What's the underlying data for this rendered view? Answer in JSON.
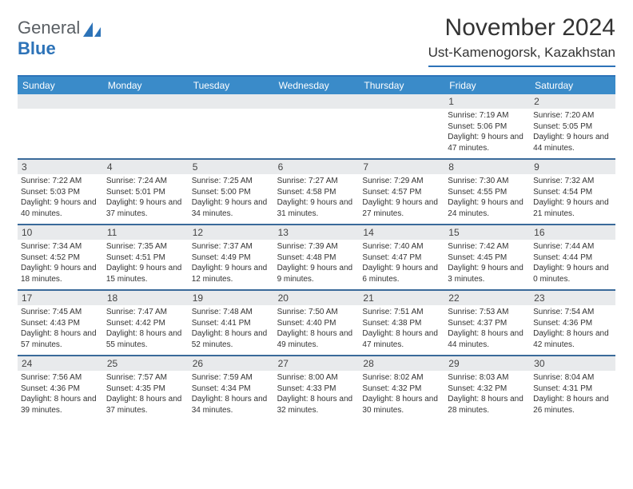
{
  "logo": {
    "word1": "General",
    "word2": "Blue"
  },
  "title": "November 2024",
  "location": "Ust-Kamenogorsk, Kazakhstan",
  "colors": {
    "header_bg": "#3a8bc9",
    "accent": "#2d73b8",
    "week_divider": "#3a6a9a",
    "daynum_bg": "#e8eaec",
    "text": "#333333",
    "logo_gray": "#5a5f64"
  },
  "weekdays": [
    "Sunday",
    "Monday",
    "Tuesday",
    "Wednesday",
    "Thursday",
    "Friday",
    "Saturday"
  ],
  "weeks": [
    [
      {
        "n": "",
        "sr": "",
        "ss": "",
        "dl": ""
      },
      {
        "n": "",
        "sr": "",
        "ss": "",
        "dl": ""
      },
      {
        "n": "",
        "sr": "",
        "ss": "",
        "dl": ""
      },
      {
        "n": "",
        "sr": "",
        "ss": "",
        "dl": ""
      },
      {
        "n": "",
        "sr": "",
        "ss": "",
        "dl": ""
      },
      {
        "n": "1",
        "sr": "Sunrise: 7:19 AM",
        "ss": "Sunset: 5:06 PM",
        "dl": "Daylight: 9 hours and 47 minutes."
      },
      {
        "n": "2",
        "sr": "Sunrise: 7:20 AM",
        "ss": "Sunset: 5:05 PM",
        "dl": "Daylight: 9 hours and 44 minutes."
      }
    ],
    [
      {
        "n": "3",
        "sr": "Sunrise: 7:22 AM",
        "ss": "Sunset: 5:03 PM",
        "dl": "Daylight: 9 hours and 40 minutes."
      },
      {
        "n": "4",
        "sr": "Sunrise: 7:24 AM",
        "ss": "Sunset: 5:01 PM",
        "dl": "Daylight: 9 hours and 37 minutes."
      },
      {
        "n": "5",
        "sr": "Sunrise: 7:25 AM",
        "ss": "Sunset: 5:00 PM",
        "dl": "Daylight: 9 hours and 34 minutes."
      },
      {
        "n": "6",
        "sr": "Sunrise: 7:27 AM",
        "ss": "Sunset: 4:58 PM",
        "dl": "Daylight: 9 hours and 31 minutes."
      },
      {
        "n": "7",
        "sr": "Sunrise: 7:29 AM",
        "ss": "Sunset: 4:57 PM",
        "dl": "Daylight: 9 hours and 27 minutes."
      },
      {
        "n": "8",
        "sr": "Sunrise: 7:30 AM",
        "ss": "Sunset: 4:55 PM",
        "dl": "Daylight: 9 hours and 24 minutes."
      },
      {
        "n": "9",
        "sr": "Sunrise: 7:32 AM",
        "ss": "Sunset: 4:54 PM",
        "dl": "Daylight: 9 hours and 21 minutes."
      }
    ],
    [
      {
        "n": "10",
        "sr": "Sunrise: 7:34 AM",
        "ss": "Sunset: 4:52 PM",
        "dl": "Daylight: 9 hours and 18 minutes."
      },
      {
        "n": "11",
        "sr": "Sunrise: 7:35 AM",
        "ss": "Sunset: 4:51 PM",
        "dl": "Daylight: 9 hours and 15 minutes."
      },
      {
        "n": "12",
        "sr": "Sunrise: 7:37 AM",
        "ss": "Sunset: 4:49 PM",
        "dl": "Daylight: 9 hours and 12 minutes."
      },
      {
        "n": "13",
        "sr": "Sunrise: 7:39 AM",
        "ss": "Sunset: 4:48 PM",
        "dl": "Daylight: 9 hours and 9 minutes."
      },
      {
        "n": "14",
        "sr": "Sunrise: 7:40 AM",
        "ss": "Sunset: 4:47 PM",
        "dl": "Daylight: 9 hours and 6 minutes."
      },
      {
        "n": "15",
        "sr": "Sunrise: 7:42 AM",
        "ss": "Sunset: 4:45 PM",
        "dl": "Daylight: 9 hours and 3 minutes."
      },
      {
        "n": "16",
        "sr": "Sunrise: 7:44 AM",
        "ss": "Sunset: 4:44 PM",
        "dl": "Daylight: 9 hours and 0 minutes."
      }
    ],
    [
      {
        "n": "17",
        "sr": "Sunrise: 7:45 AM",
        "ss": "Sunset: 4:43 PM",
        "dl": "Daylight: 8 hours and 57 minutes."
      },
      {
        "n": "18",
        "sr": "Sunrise: 7:47 AM",
        "ss": "Sunset: 4:42 PM",
        "dl": "Daylight: 8 hours and 55 minutes."
      },
      {
        "n": "19",
        "sr": "Sunrise: 7:48 AM",
        "ss": "Sunset: 4:41 PM",
        "dl": "Daylight: 8 hours and 52 minutes."
      },
      {
        "n": "20",
        "sr": "Sunrise: 7:50 AM",
        "ss": "Sunset: 4:40 PM",
        "dl": "Daylight: 8 hours and 49 minutes."
      },
      {
        "n": "21",
        "sr": "Sunrise: 7:51 AM",
        "ss": "Sunset: 4:38 PM",
        "dl": "Daylight: 8 hours and 47 minutes."
      },
      {
        "n": "22",
        "sr": "Sunrise: 7:53 AM",
        "ss": "Sunset: 4:37 PM",
        "dl": "Daylight: 8 hours and 44 minutes."
      },
      {
        "n": "23",
        "sr": "Sunrise: 7:54 AM",
        "ss": "Sunset: 4:36 PM",
        "dl": "Daylight: 8 hours and 42 minutes."
      }
    ],
    [
      {
        "n": "24",
        "sr": "Sunrise: 7:56 AM",
        "ss": "Sunset: 4:36 PM",
        "dl": "Daylight: 8 hours and 39 minutes."
      },
      {
        "n": "25",
        "sr": "Sunrise: 7:57 AM",
        "ss": "Sunset: 4:35 PM",
        "dl": "Daylight: 8 hours and 37 minutes."
      },
      {
        "n": "26",
        "sr": "Sunrise: 7:59 AM",
        "ss": "Sunset: 4:34 PM",
        "dl": "Daylight: 8 hours and 34 minutes."
      },
      {
        "n": "27",
        "sr": "Sunrise: 8:00 AM",
        "ss": "Sunset: 4:33 PM",
        "dl": "Daylight: 8 hours and 32 minutes."
      },
      {
        "n": "28",
        "sr": "Sunrise: 8:02 AM",
        "ss": "Sunset: 4:32 PM",
        "dl": "Daylight: 8 hours and 30 minutes."
      },
      {
        "n": "29",
        "sr": "Sunrise: 8:03 AM",
        "ss": "Sunset: 4:32 PM",
        "dl": "Daylight: 8 hours and 28 minutes."
      },
      {
        "n": "30",
        "sr": "Sunrise: 8:04 AM",
        "ss": "Sunset: 4:31 PM",
        "dl": "Daylight: 8 hours and 26 minutes."
      }
    ]
  ]
}
